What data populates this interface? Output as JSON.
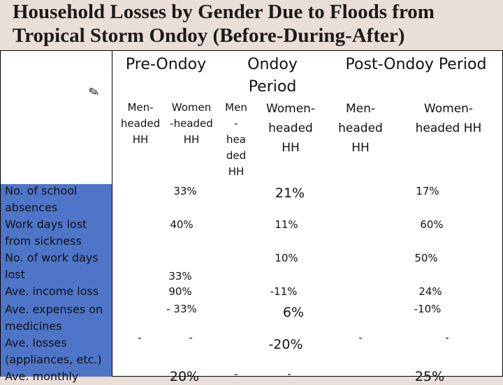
{
  "title": "Household Losses by Gender Due to Floods from Tropical Storm Ondoy (Before-During-After)",
  "headers": {
    "pre": "Pre-Ondoy",
    "ondoy_line1": "Ondoy",
    "ondoy_line2": "Period",
    "post": "Post-Ondoy Period"
  },
  "marker_glyph": "✎",
  "subheaders": {
    "pre_men": [
      "Men-",
      "headed",
      "HH"
    ],
    "pre_women": [
      "Women",
      "-headed",
      "HH"
    ],
    "ondoy_men": [
      "Men",
      "-",
      "hea",
      "ded",
      "HH"
    ],
    "ondoy_women": [
      "Women-",
      "headed",
      "HH"
    ],
    "post_men": [
      "Men-",
      "headed",
      "HH"
    ],
    "post_women": [
      "Women-",
      "headed HH"
    ]
  },
  "row_labels": [
    "No. of school",
    "absences",
    "Work days lost",
    "from sickness",
    "No. of work days",
    "lost",
    "Ave. income loss",
    "Ave. expenses on",
    "medicines",
    "Ave. losses",
    "(appliances, etc.)",
    "Ave. monthly"
  ],
  "values": {
    "pre_women_school": "33%",
    "ondoy_women_school": "21%",
    "post_women_school": "17%",
    "pre_women_sick": "40%",
    "ondoy_women_sick": "11%",
    "post_women_sick": "60%",
    "ondoy_women_workdays": "10%",
    "post_women_workdays": "50%",
    "pre_women_income": "33%",
    "pre_women_income2": "90%",
    "ondoy_women_income": "-11%",
    "post_women_income": "24%",
    "pre_women_meds": "- 33%",
    "ondoy_women_meds": "6%",
    "post_women_meds": "-10%",
    "pre_men_losses": "-",
    "pre_women_losses": "-",
    "ondoy_women_losses": "-20%",
    "post_men_losses": "-",
    "post_women_losses": "-",
    "pre_women_monthly": "20%",
    "ondoy_men_monthly": "-",
    "ondoy_women_monthly": "-",
    "post_women_monthly": "25%"
  }
}
